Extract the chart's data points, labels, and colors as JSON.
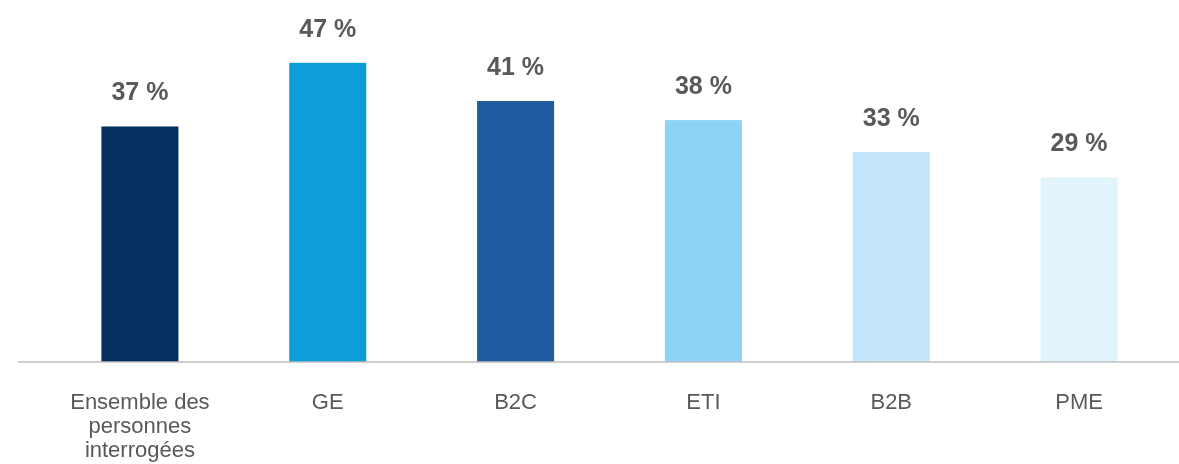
{
  "chart_data": {
    "type": "bar",
    "categories": [
      "Ensemble des personnes interrogées",
      "GE",
      "B2C",
      "ETI",
      "B2B",
      "PME"
    ],
    "values": [
      37,
      47,
      41,
      38,
      33,
      29
    ],
    "colors": [
      "#052f5f",
      "#0d9dda",
      "#1f5ca0",
      "#8dd3f5",
      "#c3e6fb",
      "#e1f4fc"
    ],
    "value_labels": [
      "37 %",
      "47 %",
      "41 %",
      "38 %",
      "33 %",
      "29 %"
    ]
  }
}
